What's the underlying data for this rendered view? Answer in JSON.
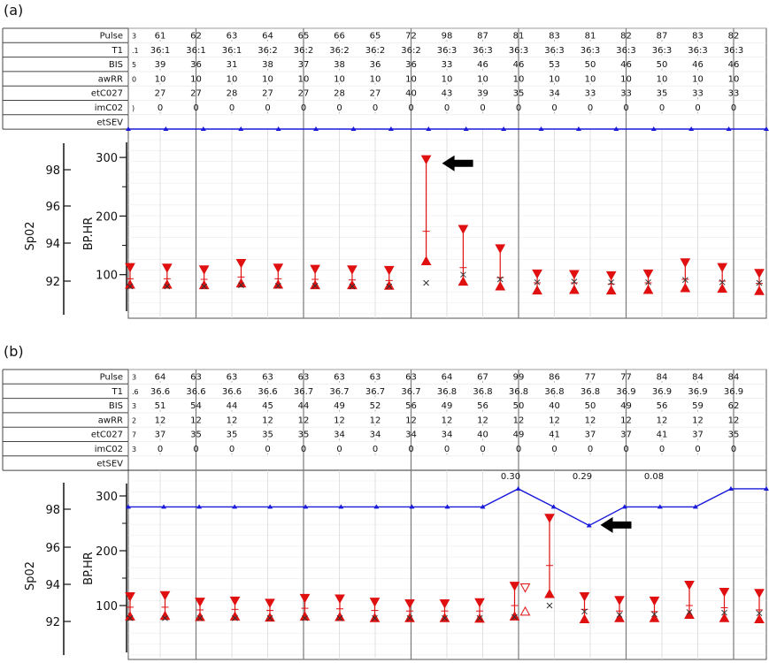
{
  "figure": {
    "panel_labels": [
      "(a)",
      "(b)"
    ]
  },
  "chart_data": [
    {
      "type": "table",
      "panel": "(a)",
      "table_rows": [
        {
          "name": "Pulse",
          "values": [
            "61",
            "62",
            "63",
            "64",
            "65",
            "66",
            "65",
            "72",
            "98",
            "87",
            "81",
            "83",
            "81",
            "82",
            "87",
            "83",
            "82"
          ]
        },
        {
          "name": "T1",
          "values": [
            "36:1",
            "36:1",
            "36:1",
            "36:2",
            "36:2",
            "36:2",
            "36:2",
            "36:2",
            "36:3",
            "36:3",
            "36:3",
            "36:3",
            "36:3",
            "36:3",
            "36:3",
            "36:3",
            "36:3"
          ]
        },
        {
          "name": "BIS",
          "values": [
            "39",
            "36",
            "31",
            "38",
            "37",
            "38",
            "36",
            "36",
            "33",
            "46",
            "46",
            "53",
            "50",
            "46",
            "50",
            "46",
            "46"
          ]
        },
        {
          "name": "awRR",
          "values": [
            "10",
            "10",
            "10",
            "10",
            "10",
            "10",
            "10",
            "10",
            "10",
            "10",
            "10",
            "10",
            "10",
            "10",
            "10",
            "10",
            "10"
          ]
        },
        {
          "name": "etC027",
          "values": [
            "27",
            "27",
            "28",
            "27",
            "27",
            "28",
            "27",
            "40",
            "43",
            "39",
            "35",
            "34",
            "33",
            "33",
            "35",
            "33",
            "33"
          ]
        },
        {
          "name": "imC02",
          "values": [
            "0",
            "0",
            "0",
            "0",
            "0",
            "0",
            "0",
            "0",
            "0",
            "0",
            "0",
            "0",
            "0",
            "0",
            "0",
            "0",
            "0"
          ]
        },
        {
          "name": "etSEV",
          "values": []
        }
      ],
      "row_stub_marks": [
        "3",
        ".1",
        "5",
        "0",
        "",
        ")",
        ""
      ],
      "y_axis_left": {
        "label": "Sp02",
        "ticks": [
          "98",
          "96",
          "94",
          "92"
        ]
      },
      "y_axis_bp": {
        "label": "BP.HR",
        "ticks": [
          "300",
          "200",
          "100"
        ]
      },
      "bp": [
        {
          "sys": 113,
          "dia": 83,
          "mean": 93
        },
        {
          "sys": 112,
          "dia": 83,
          "mean": 93
        },
        {
          "sys": 109,
          "dia": 82,
          "mean": 92
        },
        {
          "sys": 120,
          "dia": 85,
          "mean": 96
        },
        {
          "sys": 112,
          "dia": 83,
          "mean": 93
        },
        {
          "sys": 110,
          "dia": 82,
          "mean": 92
        },
        {
          "sys": 109,
          "dia": 82,
          "mean": 91
        },
        {
          "sys": 108,
          "dia": 81,
          "mean": 90
        },
        {
          "sys": 297,
          "dia": 123,
          "mean": 174
        },
        {
          "sys": 178,
          "dia": 88,
          "mean": 112
        },
        {
          "sys": 145,
          "dia": 80,
          "mean": 95
        },
        {
          "sys": 102,
          "dia": 73,
          "mean": 86
        },
        {
          "sys": 101,
          "dia": 74,
          "mean": 86
        },
        {
          "sys": 99,
          "dia": 73,
          "mean": 84
        },
        {
          "sys": 102,
          "dia": 74,
          "mean": 86
        },
        {
          "sys": 121,
          "dia": 77,
          "mean": 92
        },
        {
          "sys": 113,
          "dia": 76,
          "mean": 89
        },
        {
          "sys": 103,
          "dia": 72,
          "mean": 85
        }
      ],
      "hr_x": [
        80,
        80,
        80,
        82,
        81,
        81,
        80,
        80,
        86,
        100,
        92,
        87,
        88,
        87,
        87,
        91,
        87,
        86
      ],
      "blue_line": [
        343,
        343,
        343,
        343,
        343,
        343,
        343,
        343,
        343,
        343,
        343,
        343,
        343,
        343,
        343,
        343,
        343,
        343
      ],
      "arrow": "left",
      "arrow_at_column": 8
    },
    {
      "type": "table",
      "panel": "(b)",
      "table_rows": [
        {
          "name": "Pulse",
          "values": [
            "64",
            "63",
            "63",
            "63",
            "63",
            "63",
            "63",
            "63",
            "64",
            "67",
            "99",
            "86",
            "77",
            "77",
            "84",
            "84",
            "84"
          ]
        },
        {
          "name": "T1",
          "values": [
            "36.6",
            "36.6",
            "36.6",
            "36.6",
            "36.7",
            "36.7",
            "36.7",
            "36.7",
            "36.8",
            "36.8",
            "36.8",
            "36.8",
            "36.8",
            "36.9",
            "36.9",
            "36.9",
            "36.9"
          ]
        },
        {
          "name": "BIS",
          "values": [
            "51",
            "54",
            "44",
            "45",
            "44",
            "49",
            "52",
            "56",
            "49",
            "56",
            "50",
            "40",
            "50",
            "49",
            "56",
            "59",
            "62"
          ]
        },
        {
          "name": "awRR",
          "values": [
            "12",
            "12",
            "12",
            "12",
            "12",
            "12",
            "12",
            "12",
            "12",
            "12",
            "12",
            "12",
            "12",
            "12",
            "12",
            "12",
            "12"
          ]
        },
        {
          "name": "etC027",
          "values": [
            "37",
            "35",
            "35",
            "35",
            "35",
            "34",
            "34",
            "34",
            "34",
            "40",
            "49",
            "41",
            "37",
            "37",
            "41",
            "37",
            "35"
          ]
        },
        {
          "name": "imC02",
          "values": [
            "0",
            "0",
            "0",
            "0",
            "0",
            "0",
            "0",
            "0",
            "0",
            "0",
            "0",
            "0",
            "0",
            "0",
            "0",
            "0",
            "0"
          ]
        },
        {
          "name": "etSEV",
          "values": [
            "",
            "",
            "",
            "",
            "",
            "",
            "",
            "",
            "",
            "",
            "0.30",
            "",
            "0.29",
            "",
            "0.08",
            "",
            ""
          ]
        }
      ],
      "row_stub_marks": [
        "3",
        ".6",
        "3",
        "2",
        "7",
        "3",
        ""
      ],
      "y_axis_left": {
        "label": "Sp02",
        "ticks": [
          "98",
          "96",
          "94",
          "92"
        ]
      },
      "y_axis_bp": {
        "label": "BP.HR",
        "ticks": [
          "300",
          "200",
          "100"
        ]
      },
      "bp": [
        {
          "sys": 117,
          "dia": 80,
          "mean": 97
        },
        {
          "sys": 119,
          "dia": 81,
          "mean": 97
        },
        {
          "sys": 107,
          "dia": 79,
          "mean": 92
        },
        {
          "sys": 109,
          "dia": 80,
          "mean": 93
        },
        {
          "sys": 105,
          "dia": 78,
          "mean": 91
        },
        {
          "sys": 114,
          "dia": 80,
          "mean": 95
        },
        {
          "sys": 113,
          "dia": 79,
          "mean": 94
        },
        {
          "sys": 107,
          "dia": 77,
          "mean": 91
        },
        {
          "sys": 104,
          "dia": 77,
          "mean": 90
        },
        {
          "sys": 104,
          "dia": 77,
          "mean": 90
        },
        {
          "sys": 106,
          "dia": 76,
          "mean": 90
        },
        {
          "sys": 136,
          "dia": 80,
          "mean": 100
        },
        {
          "sys": 260,
          "dia": 121,
          "mean": 173
        },
        {
          "sys": 117,
          "dia": 75,
          "mean": 93
        },
        {
          "sys": 110,
          "dia": 77,
          "mean": 90
        },
        {
          "sys": 109,
          "dia": 77,
          "mean": 89
        },
        {
          "sys": 138,
          "dia": 83,
          "mean": 100
        },
        {
          "sys": 125,
          "dia": 77,
          "mean": 96
        },
        {
          "sys": 123,
          "dia": 75,
          "mean": 92
        }
      ],
      "hr_x": [
        77,
        77,
        77,
        77,
        77,
        77,
        77,
        77,
        77,
        77,
        77,
        79,
        100,
        89,
        83,
        84,
        88,
        87,
        86
      ],
      "blue_line": [
        280,
        280,
        280,
        280,
        280,
        280,
        280,
        280,
        280,
        280,
        280,
        313,
        280,
        246,
        280,
        280,
        280,
        313,
        313
      ],
      "open_triangles": [
        {
          "col": 11,
          "value": 133
        },
        {
          "col": 11,
          "value": 89
        }
      ],
      "arrow": "left",
      "arrow_at_column": 13
    }
  ]
}
